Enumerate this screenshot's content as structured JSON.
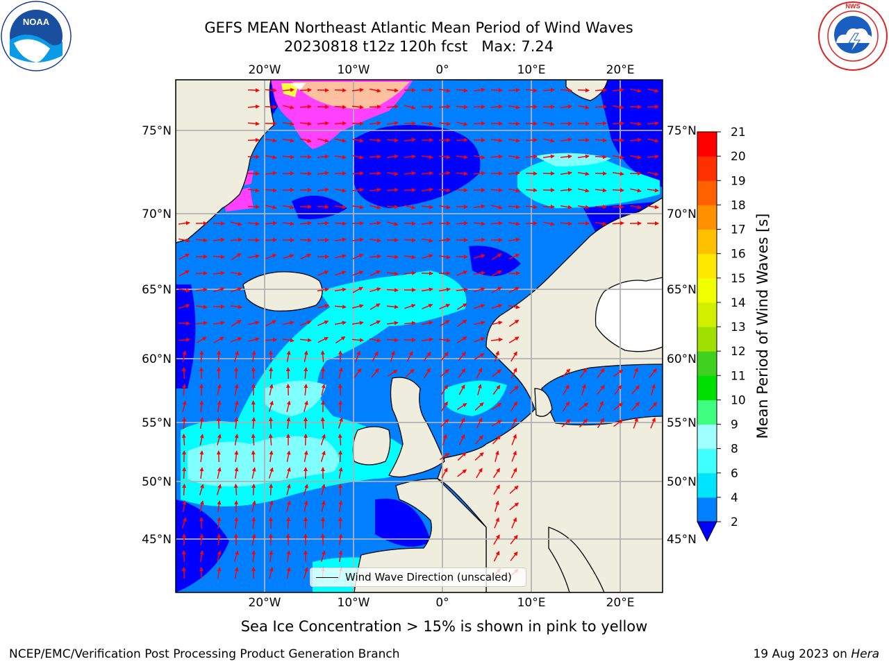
{
  "header": {
    "title_line_1": "GEFS MEAN Northeast Atlantic Mean Period of Wind Waves",
    "title_line_2": "20230818 t12z 120h fcst   Max: 7.24"
  },
  "logos": {
    "left": "noaa-logo",
    "right": "nws-logo",
    "noaa_text": "NOAA",
    "noaa_ring_text": "NATIONAL OCEANIC AND ATMOSPHERIC ADMINISTRATION • U.S. DEPARTMENT OF COMMERCE",
    "nws_ring_text": "NATIONAL WEATHER SERVICE"
  },
  "map": {
    "top_lon_labels": [
      "20°W",
      "10°W",
      "0°",
      "10°E",
      "20°E"
    ],
    "bottom_lon_labels": [
      "20°W",
      "10°W",
      "0°",
      "10°E",
      "20°E"
    ],
    "left_lat_labels": [
      "75°N",
      "70°N",
      "65°N",
      "60°N",
      "55°N",
      "50°N",
      "45°N"
    ],
    "right_lat_labels": [
      "75°N",
      "70°N",
      "65°N",
      "60°N",
      "55°N",
      "50°N",
      "45°N"
    ],
    "colors": {
      "land": "#efedde",
      "low_period": "#0000ff",
      "mid_period": "#0080ff",
      "cyan": "#00ffff",
      "light_cyan": "#80ffff",
      "ice_pink": "#ff40ff",
      "ice_yellow": "#ffff40",
      "arrow": "#ff0000",
      "grid": "#b0b0b0"
    },
    "legend_label": "Wind Wave Direction (unscaled)"
  },
  "colorbar": {
    "label": "Mean Period of Wind Waves [s]",
    "tick_labels": [
      "2",
      "4",
      "6",
      "8",
      "9",
      "10",
      "11",
      "12",
      "13",
      "14",
      "15",
      "16",
      "17",
      "18",
      "19",
      "20",
      "21"
    ],
    "colors": [
      "#0080ff",
      "#00e5ff",
      "#40ffff",
      "#a0ffff",
      "#40ff80",
      "#00e000",
      "#40d020",
      "#a0e000",
      "#d0f000",
      "#f0ff00",
      "#ffe800",
      "#ffc000",
      "#ff9000",
      "#ff6000",
      "#ff3000",
      "#ff0000"
    ],
    "extend_color": "#0000ff"
  },
  "subtitle": "Sea Ice Concentration > 15% is shown in pink to yellow",
  "footer": {
    "left": "NCEP/EMC/Verification Post Processing Product Generation Branch",
    "right_prefix": "19 Aug 2023 on ",
    "right_host": "Hera"
  }
}
